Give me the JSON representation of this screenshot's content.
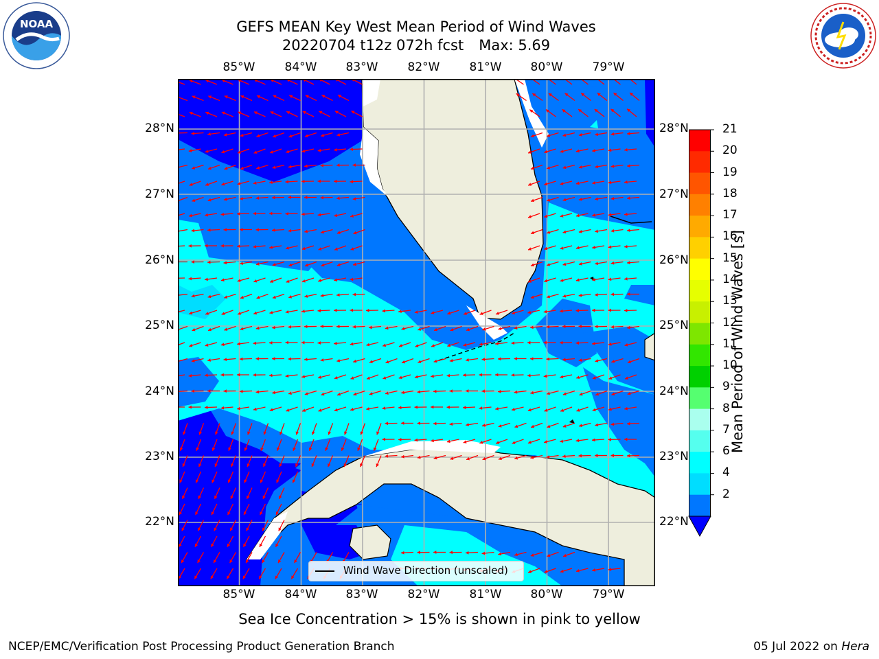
{
  "title": {
    "line1": "GEFS MEAN Key West Mean Period of Wind Waves",
    "line2_date": "20220704 t12z 072h fcst",
    "line2_max": "Max: 5.69"
  },
  "logos": {
    "left": "noaa-logo",
    "left_text": "NOAA",
    "right": "national-weather-service-logo",
    "right_text": "NATIONAL WEATHER SERVICE"
  },
  "map": {
    "lon_ticks": [
      "85°W",
      "84°W",
      "83°W",
      "82°W",
      "81°W",
      "80°W",
      "79°W"
    ],
    "lat_ticks": [
      "28°N",
      "27°N",
      "26°N",
      "25°N",
      "24°N",
      "23°N",
      "22°N"
    ],
    "legend_label": "Wind Wave Direction (unscaled)",
    "arrow_color": "#ff0000",
    "land_color": "#eeeedd",
    "grid_color": "#b0b0b0"
  },
  "colorbar": {
    "label": "Mean Period of Wind Waves [s]",
    "ticks": [
      "21",
      "20",
      "19",
      "18",
      "17",
      "16",
      "15",
      "14",
      "13",
      "12",
      "11",
      "10",
      "9",
      "8",
      "7",
      "6",
      "4",
      "2"
    ],
    "colors_top_to_bottom": [
      "#ff0000",
      "#ff2a00",
      "#ff5500",
      "#ff8000",
      "#ffaa00",
      "#ffd000",
      "#ffff00",
      "#e6ff00",
      "#c8f000",
      "#7ee600",
      "#32e600",
      "#00d000",
      "#55ff70",
      "#aaffee",
      "#55ffee",
      "#00ffff",
      "#00ddff",
      "#0077ff"
    ],
    "extend_color": "#0000ff"
  },
  "note": "Sea Ice Concentration > 15% is shown in pink to yellow",
  "footer": {
    "left": "NCEP/EMC/Verification Post Processing Product Generation Branch",
    "right_prefix": "05 Jul 2022 on",
    "right_host": "Hera"
  }
}
